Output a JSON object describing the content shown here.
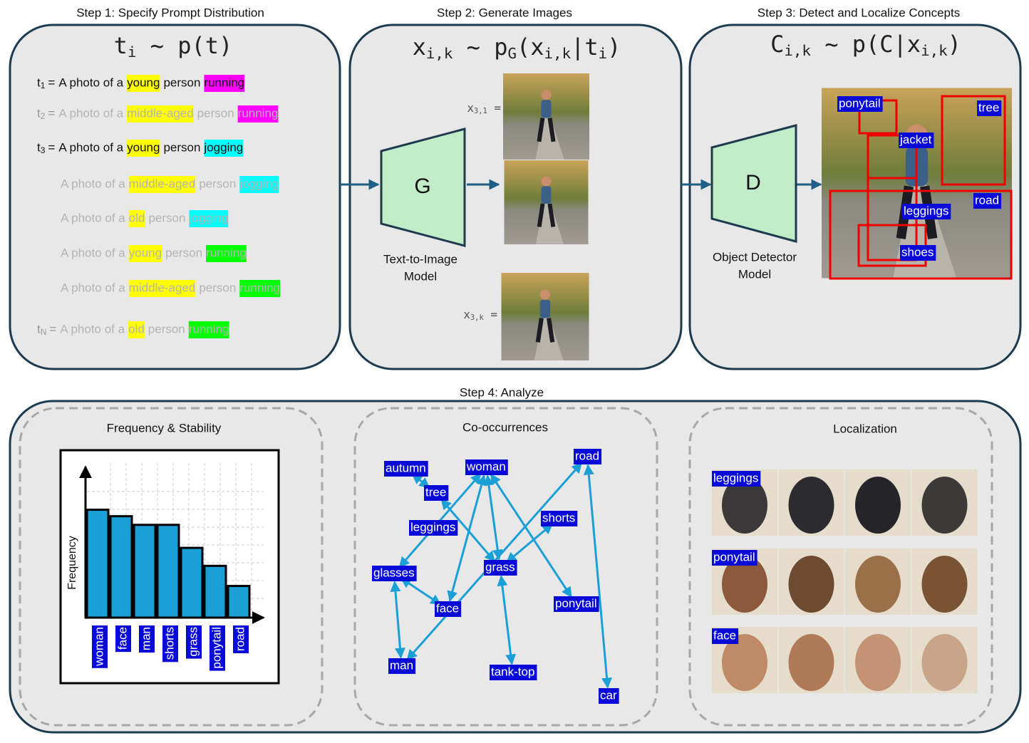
{
  "step1": {
    "title": "Step 1: Specify Prompt Distribution",
    "formula": [
      {
        "text": "t"
      },
      {
        "sub": "i"
      },
      {
        "text": " ~ p(t)"
      }
    ],
    "prompts": [
      {
        "label": "t",
        "label_sub": "1",
        "eq": "=",
        "text": "A photo of a",
        "age": "young",
        "age_color": "#ffff00",
        "mid": "person",
        "action": "running",
        "action_color": "#ff00ff",
        "faded": false
      },
      {
        "label": "t",
        "label_sub": "2",
        "eq": "=",
        "text": "A photo of a",
        "age": "middle-aged",
        "age_color": "#ffff00",
        "mid": "person",
        "action": "running",
        "action_color": "#ff00ff",
        "faded": true
      },
      {
        "label": "t",
        "label_sub": "3",
        "eq": "=",
        "text": "A photo of a",
        "age": "young",
        "age_color": "#ffff00",
        "mid": "person",
        "action": "jogging",
        "action_color": "#00ffff",
        "faded": false
      },
      {
        "text": "A photo of a",
        "age": "middle-aged",
        "age_color": "#ffff00",
        "mid": "person",
        "action": "jogging",
        "action_color": "#00ffff",
        "faded": true
      },
      {
        "text": "A photo of a",
        "age": "old",
        "age_color": "#ffff00",
        "mid": "person",
        "action": "jogging",
        "action_color": "#00ffff",
        "faded": true
      },
      {
        "text": "A photo of a",
        "age": "young",
        "age_color": "#ffff00",
        "mid": "person",
        "action": "running",
        "action_color": "#00ff00",
        "faded": true
      },
      {
        "text": "A photo of a",
        "age": "middle-aged",
        "age_color": "#ffff00",
        "mid": "person",
        "action": "running",
        "action_color": "#00ff00",
        "faded": true
      },
      {
        "label": "t",
        "label_sub": "N",
        "eq": "=",
        "text": "A photo of a",
        "age": "old",
        "age_color": "#ffff00",
        "mid": "person",
        "action": "running",
        "action_color": "#00ff00",
        "faded": true
      }
    ]
  },
  "step2": {
    "title": "Step 2: Generate Images",
    "formula": [
      {
        "text": "x"
      },
      {
        "sub": "i,k"
      },
      {
        "text": " ~ p"
      },
      {
        "sub": "G"
      },
      {
        "text": "(x"
      },
      {
        "sub": "i,k"
      },
      {
        "text": "|t"
      },
      {
        "sub": "i"
      },
      {
        "text": ")"
      }
    ],
    "model_letter": "G",
    "model_name": [
      "Text-to-Image",
      "Model"
    ],
    "captions": [
      [
        {
          "text": "x"
        },
        {
          "sub": "3,1"
        },
        {
          "text": " ="
        }
      ],
      [
        {
          "text": "x"
        },
        {
          "sub": "3,k"
        },
        {
          "text": " ="
        }
      ]
    ]
  },
  "step3": {
    "title": "Step 3: Detect and Localize Concepts",
    "formula": [
      {
        "text": "C"
      },
      {
        "sub": "i,k"
      },
      {
        "text": " ~ p(C|x"
      },
      {
        "sub": "i,k"
      },
      {
        "text": ")"
      }
    ],
    "model_letter": "D",
    "model_name": [
      "Object Detector",
      "Model"
    ],
    "detections": [
      "ponytail",
      "tree",
      "jacket",
      "road",
      "leggings",
      "shoes"
    ]
  },
  "step4": {
    "title": "Step 4: Analyze",
    "frequency": {
      "title": "Frequency & Stability",
      "y_label": "Frequency",
      "categories": [
        "woman",
        "face",
        "man",
        "shorts",
        "grass",
        "ponytail",
        "road"
      ],
      "values": [
        150,
        141,
        129,
        129,
        97,
        72,
        44
      ],
      "ylim": [
        0,
        210
      ],
      "color": "#1a9fd6"
    },
    "cooccurrence": {
      "title": "Co-occurrences",
      "nodes": [
        "autumn",
        "woman",
        "road",
        "tree",
        "leggings",
        "shorts",
        "glasses",
        "grass",
        "face",
        "ponytail",
        "man",
        "tank-top",
        "car"
      ]
    },
    "localization": {
      "title": "Localization",
      "rows": [
        "leggings",
        "ponytail",
        "face"
      ]
    }
  }
}
